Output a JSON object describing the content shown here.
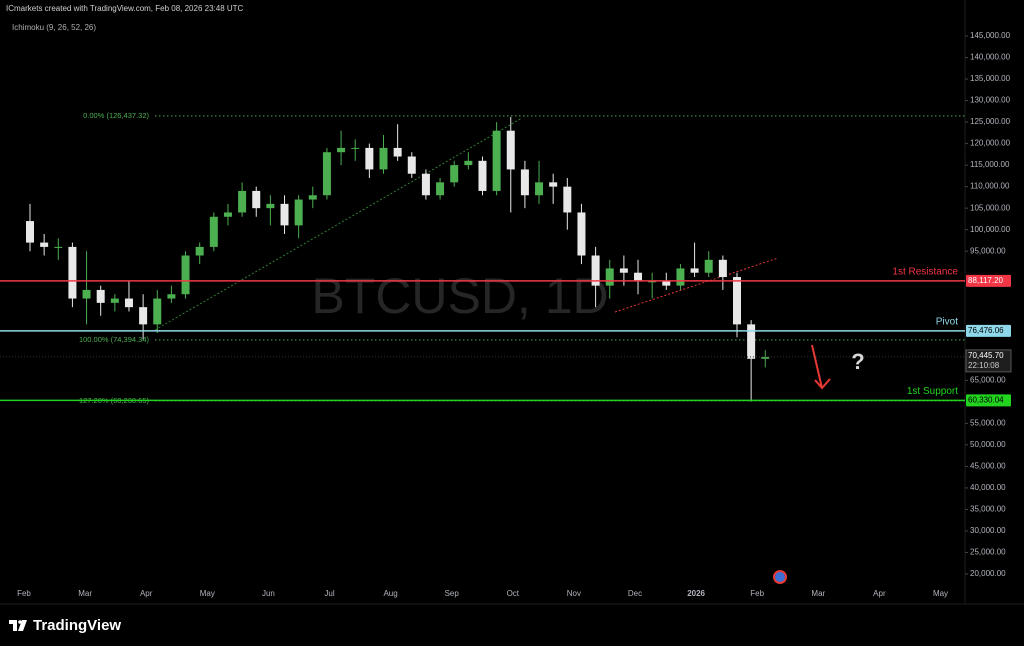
{
  "header": {
    "attribution": "ICmarkets created with TradingView.com, Feb 08, 2026 23:48 UTC",
    "indicator": "Ichimoku (9, 26, 52, 26)"
  },
  "footer": {
    "brand": "TradingView"
  },
  "chart_data": {
    "type": "candlestick",
    "watermark": "BTCUSD, 1D",
    "annotation": "?",
    "up_color": "#4caf50",
    "down_color": "#e8e8e8",
    "time_labels": [
      "Feb",
      "Mar",
      "Apr",
      "May",
      "Jun",
      "Jul",
      "Aug",
      "Sep",
      "Oct",
      "Nov",
      "Dec",
      "2026",
      "Feb",
      "Mar",
      "Apr",
      "May"
    ],
    "open": [
      102000,
      97000,
      96000,
      96000,
      84000,
      86000,
      83000,
      84000,
      82000,
      78000,
      84000,
      85000,
      94000,
      96000,
      103000,
      104000,
      109000,
      105000,
      106000,
      101000,
      107000,
      108000,
      118000,
      119000,
      119000,
      114000,
      119000,
      117000,
      113000,
      108000,
      111000,
      115000,
      116000,
      109000,
      123000,
      114000,
      108000,
      111000,
      110000,
      104000,
      94000,
      87000,
      91000,
      90000,
      88000,
      88000,
      87000,
      91000,
      90000,
      93000,
      89000,
      78000,
      70000
    ],
    "high": [
      106000,
      99000,
      98000,
      97000,
      95000,
      87000,
      85000,
      88000,
      85000,
      86000,
      87000,
      95000,
      97000,
      104000,
      106000,
      111000,
      110000,
      108000,
      108000,
      108000,
      110000,
      119000,
      123000,
      121000,
      120000,
      122000,
      124500,
      118000,
      114000,
      112000,
      116000,
      118000,
      117000,
      125000,
      126200,
      116000,
      116000,
      113000,
      112000,
      106000,
      96000,
      93000,
      94000,
      93000,
      90000,
      90000,
      92000,
      97000,
      95000,
      94000,
      90000,
      79000,
      72000
    ],
    "low": [
      95000,
      94000,
      93000,
      82000,
      78000,
      80000,
      81000,
      81000,
      74500,
      76000,
      83000,
      84000,
      92000,
      95000,
      101000,
      103000,
      103000,
      101000,
      99000,
      98000,
      105000,
      107000,
      115000,
      116000,
      112000,
      113000,
      116000,
      112000,
      107000,
      107000,
      110000,
      114000,
      108000,
      108000,
      104000,
      105000,
      106000,
      106000,
      100000,
      92000,
      82000,
      84000,
      87000,
      85000,
      84000,
      86000,
      86000,
      89000,
      89000,
      86000,
      75000,
      60074,
      68000
    ],
    "close": [
      97000,
      96000,
      96000,
      84000,
      86000,
      83000,
      84000,
      82000,
      78000,
      84000,
      85000,
      94000,
      96000,
      103000,
      104000,
      109000,
      105000,
      106000,
      101000,
      107000,
      108000,
      118000,
      119000,
      119000,
      114000,
      119000,
      117000,
      113000,
      108000,
      111000,
      115000,
      116000,
      109000,
      123000,
      114000,
      108000,
      111000,
      110000,
      104000,
      94000,
      87000,
      91000,
      90000,
      88000,
      88000,
      87000,
      91000,
      90000,
      93000,
      89000,
      78000,
      70000,
      70445.7
    ],
    "ylim": [
      14424,
      153364
    ],
    "yticks": [
      {
        "value": 20000,
        "label": "20,000.00"
      },
      {
        "value": 25000,
        "label": "25,000.00"
      },
      {
        "value": 30000,
        "label": "30,000.00"
      },
      {
        "value": 35000,
        "label": "35,000.00"
      },
      {
        "value": 40000,
        "label": "40,000.00"
      },
      {
        "value": 45000,
        "label": "45,000.00"
      },
      {
        "value": 50000,
        "label": "50,000.00"
      },
      {
        "value": 55000,
        "label": "55,000.00"
      },
      {
        "value": 65000,
        "label": "65,000.00"
      },
      {
        "value": 95000,
        "label": "95,000.00"
      },
      {
        "value": 100000,
        "label": "100,000.00"
      },
      {
        "value": 105000,
        "label": "105,000.00"
      },
      {
        "value": 110000,
        "label": "110,000.00"
      },
      {
        "value": 115000,
        "label": "115,000.00"
      },
      {
        "value": 120000,
        "label": "120,000.00"
      },
      {
        "value": 125000,
        "label": "125,000.00"
      },
      {
        "value": 130000,
        "label": "130,000.00"
      },
      {
        "value": 135000,
        "label": "135,000.00"
      },
      {
        "value": 140000,
        "label": "140,000.00"
      },
      {
        "value": 145000,
        "label": "145,000.00"
      }
    ],
    "fib_levels": [
      {
        "value": 126437.32,
        "label": "0.00% (126,437.32)"
      },
      {
        "value": 74394.34,
        "label": "100.00% (74,394.34)"
      },
      {
        "value": 60238.65,
        "label": "127.20% (60,238.65)"
      }
    ],
    "fib_color": "#4caf50",
    "levels": [
      {
        "name": "1st Resistance",
        "value": 88117.2,
        "label": "88,117.20",
        "color": "#f23645"
      },
      {
        "name": "Pivot",
        "value": 76476.06,
        "label": "76,476.06",
        "color": "#8fd8ea"
      },
      {
        "name": "1st Support",
        "value": 60330.04,
        "label": "60,330.04",
        "color": "#22d31f"
      }
    ],
    "last_price": {
      "value": 70445.7,
      "label": "70,445.70",
      "countdown": "22:10:08"
    }
  }
}
